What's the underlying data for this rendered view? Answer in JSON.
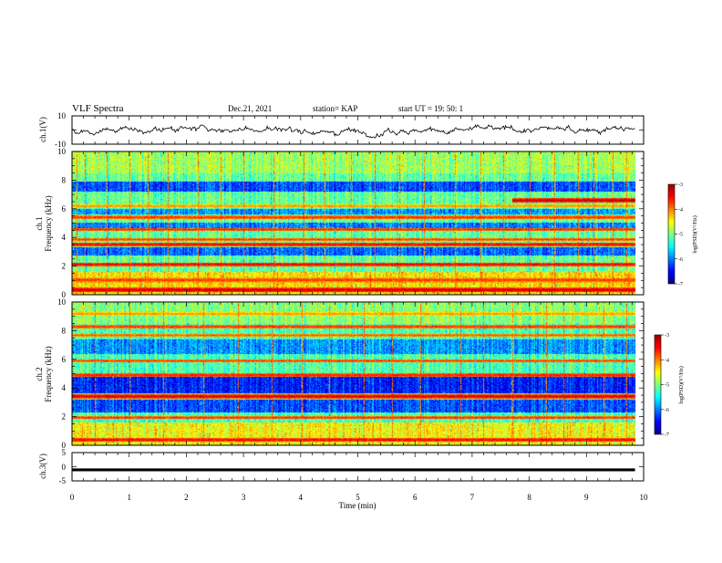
{
  "header": {
    "title": "VLF Spectra",
    "date": "Dec.21, 2021",
    "station": "station= KAP",
    "start_time": "start  UT  =   19: 50: 1"
  },
  "chart_data": [
    {
      "type": "line",
      "panel": "ch1-waveform",
      "ylabel": "ch.1(V)",
      "xlim": [
        0,
        10
      ],
      "ylim": [
        -10,
        10
      ],
      "y_ticks": [
        "10",
        "-10"
      ],
      "x_range_data": [
        0,
        9.85
      ],
      "noise_level": 3.5,
      "baseline": 0.2,
      "line_color": "#000000"
    },
    {
      "type": "heatmap",
      "panel": "ch1-spectrogram",
      "ylabel": "Frequency (kHz)",
      "ylabel_prefix": "ch.1",
      "ylim": [
        0,
        10
      ],
      "y_ticks": [
        "0",
        "2",
        "4",
        "6",
        "8",
        "10"
      ],
      "x_range_data": [
        0,
        9.85
      ],
      "colorbar": {
        "label": "log(PSD)(V²/Hz)",
        "ticks": [
          "-3",
          "-4",
          "-5",
          "-6",
          "-7"
        ],
        "range": [
          -7,
          -3
        ]
      },
      "horizontal_bands": [
        {
          "freq": 0.3,
          "level": -3.2,
          "width": 0.15
        },
        {
          "freq": 1.0,
          "level": -3.6,
          "width": 0.2
        },
        {
          "freq": 2.1,
          "level": -3.4,
          "width": 0.12
        },
        {
          "freq": 3.5,
          "level": -3.4,
          "width": 0.15
        },
        {
          "freq": 3.85,
          "level": -3.7,
          "width": 0.12
        },
        {
          "freq": 4.55,
          "level": -3.6,
          "width": 0.1
        },
        {
          "freq": 5.4,
          "level": -3.6,
          "width": 0.12
        },
        {
          "freq": 6.2,
          "level": -4.0,
          "width": 0.1
        },
        {
          "freq": 6.6,
          "level": -3.2,
          "width": 0.15,
          "start_min": 7.7
        }
      ],
      "quiet_bands": [
        {
          "lo": 2.7,
          "hi": 3.3,
          "level": -6.1
        },
        {
          "lo": 4.6,
          "hi": 5.0,
          "level": -6.0
        },
        {
          "lo": 5.6,
          "hi": 6.0,
          "level": -5.9
        },
        {
          "lo": 7.2,
          "hi": 7.9,
          "level": -6.2
        }
      ],
      "background_level": -5.1,
      "vertical_spikes_min": [
        0.08,
        0.22,
        0.6,
        1.0,
        1.33,
        1.68,
        2.2,
        2.6,
        3.0,
        3.53,
        4.05,
        4.42,
        4.88,
        5.3,
        5.72,
        6.15,
        6.7,
        7.15,
        7.55,
        8.0,
        8.44,
        8.85,
        9.12,
        9.45,
        9.7
      ]
    },
    {
      "type": "heatmap",
      "panel": "ch2-spectrogram",
      "ylabel": "Frequency (kHz)",
      "ylabel_prefix": "ch.2",
      "ylim": [
        0,
        10
      ],
      "y_ticks": [
        "0",
        "2",
        "4",
        "6",
        "8",
        "10"
      ],
      "x_range_data": [
        0,
        9.85
      ],
      "colorbar": {
        "label": "log(PSD)(V²/Hz)",
        "ticks": [
          "-3",
          "-4",
          "-5",
          "-6",
          "-7"
        ],
        "range": [
          -7,
          -3
        ]
      },
      "horizontal_bands": [
        {
          "freq": 0.35,
          "level": -3.4,
          "width": 0.12
        },
        {
          "freq": 1.9,
          "level": -3.6,
          "width": 0.1
        },
        {
          "freq": 3.4,
          "level": -3.3,
          "width": 0.15
        },
        {
          "freq": 4.9,
          "level": -3.5,
          "width": 0.12
        },
        {
          "freq": 5.9,
          "level": -3.7,
          "width": 0.1
        },
        {
          "freq": 7.7,
          "level": -3.8,
          "width": 0.1
        },
        {
          "freq": 8.3,
          "level": -3.6,
          "width": 0.1
        },
        {
          "freq": 9.2,
          "level": -4.0,
          "width": 0.1
        }
      ],
      "quiet_bands": [
        {
          "lo": 2.3,
          "hi": 3.2,
          "level": -6.2
        },
        {
          "lo": 3.6,
          "hi": 4.8,
          "level": -6.4
        },
        {
          "lo": 6.4,
          "hi": 7.4,
          "level": -5.9
        }
      ],
      "background_level": -5.2,
      "vertical_spikes_min": [
        0.4,
        1.0,
        1.6,
        2.3,
        2.9,
        3.5,
        4.02,
        4.5,
        5.1,
        5.6,
        6.1,
        6.8,
        7.2,
        7.7,
        8.3,
        8.6,
        9.3,
        9.7
      ]
    },
    {
      "type": "line",
      "panel": "ch3-waveform",
      "ylabel": "ch.3(V)",
      "xlim": [
        0,
        10
      ],
      "ylim": [
        -5,
        5
      ],
      "y_ticks": [
        "5",
        "0",
        "-5"
      ],
      "x_range_data": [
        0,
        9.85
      ],
      "noise_level": 0.35,
      "baseline": 0.0,
      "line_color": "#000000"
    }
  ],
  "x_axis": {
    "label": "Time  (min)",
    "ticks": [
      "0",
      "1",
      "2",
      "3",
      "4",
      "5",
      "6",
      "7",
      "8",
      "9",
      "10"
    ],
    "xlim": [
      0,
      10
    ]
  }
}
